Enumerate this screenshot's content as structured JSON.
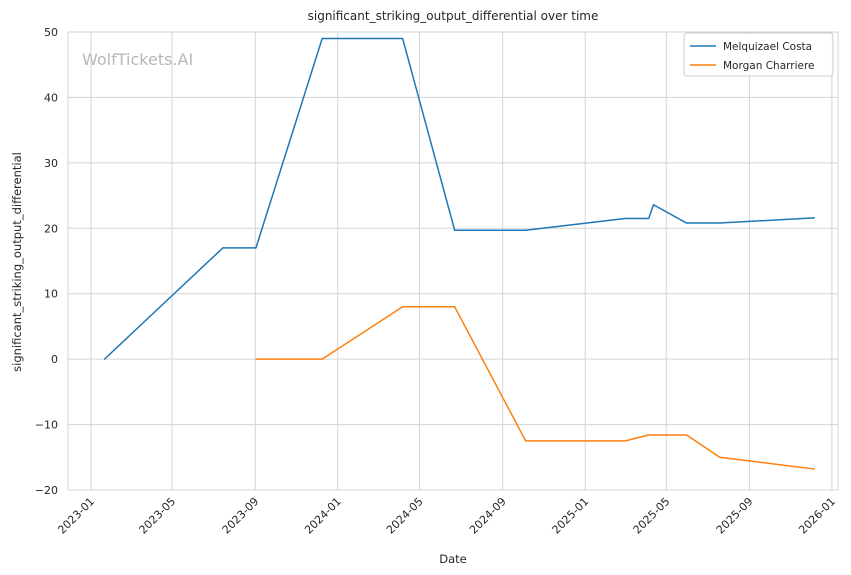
{
  "watermark": "WolfTickets.AI",
  "chart_data": {
    "type": "line",
    "title": "significant_striking_output_differential over time",
    "xlabel": "Date",
    "ylabel": "significant_striking_output_differential",
    "ylim": [
      -20,
      50
    ],
    "xlim": [
      "2022-11-28",
      "2026-01-10"
    ],
    "y_ticks": [
      -20,
      -10,
      0,
      10,
      20,
      30,
      40,
      50
    ],
    "x_ticks": [
      "2023-01",
      "2023-05",
      "2023-09",
      "2024-01",
      "2024-05",
      "2024-09",
      "2025-01",
      "2025-05",
      "2025-09",
      "2026-01"
    ],
    "grid": true,
    "legend_position": "top-right",
    "series": [
      {
        "name": "Melquizael Costa",
        "color": "#1f77b4",
        "points": [
          {
            "x": "2023-01-21",
            "y": 0
          },
          {
            "x": "2023-07-15",
            "y": 17
          },
          {
            "x": "2023-09-02",
            "y": 17
          },
          {
            "x": "2023-12-09",
            "y": 49
          },
          {
            "x": "2024-04-06",
            "y": 49
          },
          {
            "x": "2024-06-22",
            "y": 19.7
          },
          {
            "x": "2024-10-05",
            "y": 19.7
          },
          {
            "x": "2025-03-01",
            "y": 21.5
          },
          {
            "x": "2025-04-05",
            "y": 21.5
          },
          {
            "x": "2025-04-12",
            "y": 23.6
          },
          {
            "x": "2025-05-31",
            "y": 20.8
          },
          {
            "x": "2025-07-19",
            "y": 20.8
          },
          {
            "x": "2025-12-06",
            "y": 21.6
          }
        ]
      },
      {
        "name": "Morgan Charriere",
        "color": "#ff7f0e",
        "points": [
          {
            "x": "2023-09-02",
            "y": 0
          },
          {
            "x": "2023-12-09",
            "y": 0
          },
          {
            "x": "2024-04-06",
            "y": 8
          },
          {
            "x": "2024-06-22",
            "y": 8
          },
          {
            "x": "2024-10-05",
            "y": -12.5
          },
          {
            "x": "2025-03-01",
            "y": -12.5
          },
          {
            "x": "2025-04-05",
            "y": -11.6
          },
          {
            "x": "2025-05-31",
            "y": -11.6
          },
          {
            "x": "2025-07-19",
            "y": -15
          },
          {
            "x": "2025-12-06",
            "y": -16.8
          }
        ]
      }
    ]
  }
}
